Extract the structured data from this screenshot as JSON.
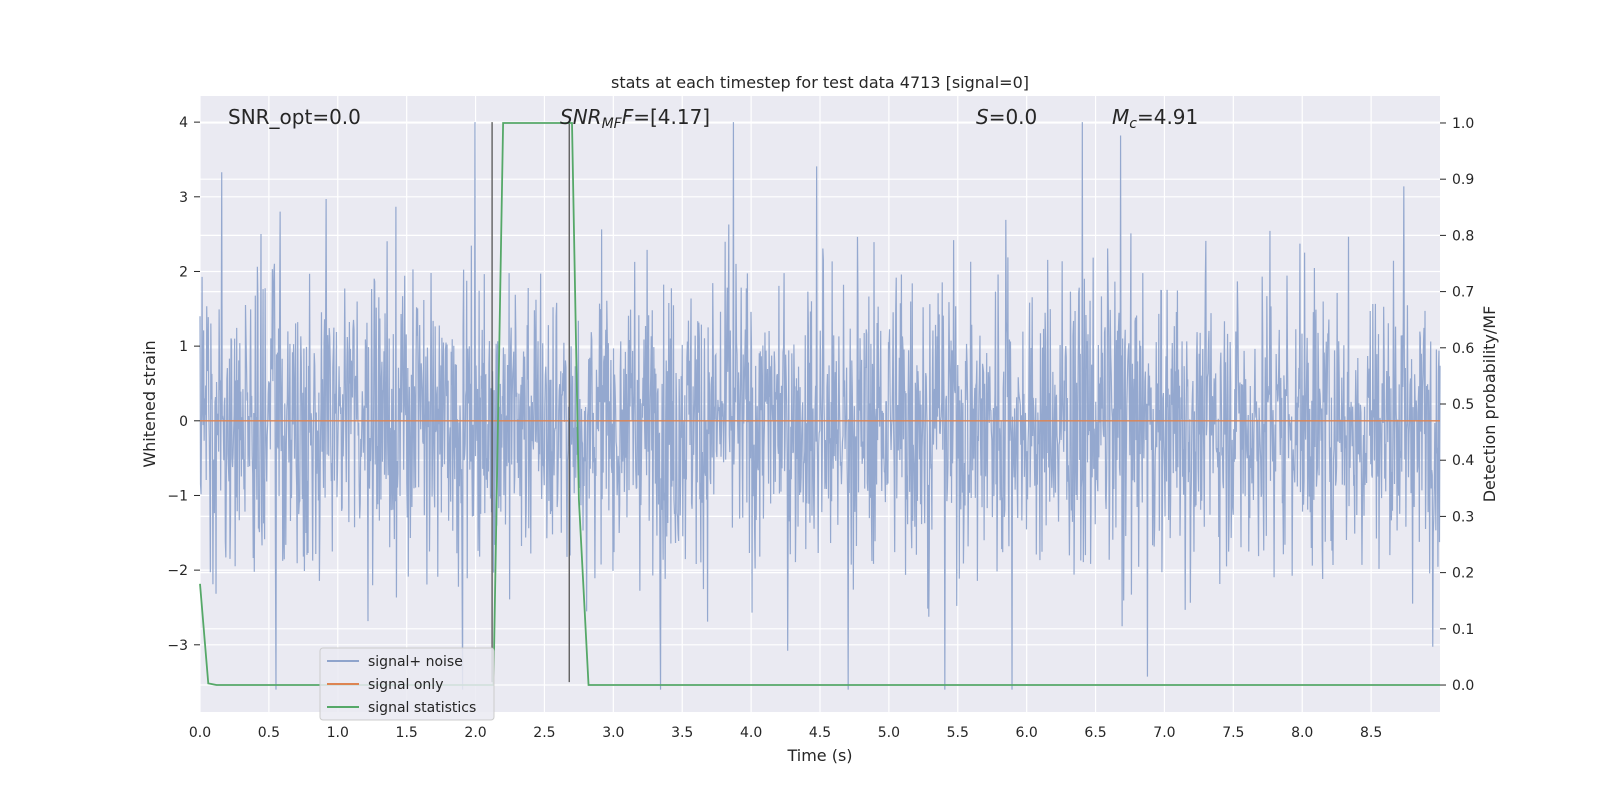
{
  "chart_data": {
    "type": "line",
    "title": "stats at each timestep for test data 4713 [signal=0]",
    "xlabel": "Time (s)",
    "ylabel": "Whitened strain",
    "y2label": "Detection probability/MF",
    "xlim": [
      0.0,
      9.0
    ],
    "ylim": [
      -3.9,
      4.35
    ],
    "y2lim": [
      -0.048,
      1.048
    ],
    "xticks": [
      0.0,
      0.5,
      1.0,
      1.5,
      2.0,
      2.5,
      3.0,
      3.5,
      4.0,
      4.5,
      5.0,
      5.5,
      6.0,
      6.5,
      7.0,
      7.5,
      8.0,
      8.5
    ],
    "xtick_labels": [
      "0.0",
      "0.5",
      "1.0",
      "1.5",
      "2.0",
      "2.5",
      "3.0",
      "3.5",
      "4.0",
      "4.5",
      "5.0",
      "5.5",
      "6.0",
      "6.5",
      "7.0",
      "7.5",
      "8.0",
      "8.5"
    ],
    "yticks": [
      -3,
      -2,
      -1,
      0,
      1,
      2,
      3,
      4
    ],
    "ytick_labels": [
      "−3",
      "−2",
      "−1",
      "0",
      "1",
      "2",
      "3",
      "4"
    ],
    "y2ticks": [
      0.0,
      0.1,
      0.2,
      0.3,
      0.4,
      0.5,
      0.6,
      0.7,
      0.8,
      0.9,
      1.0
    ],
    "y2tick_labels": [
      "0.0",
      "0.1",
      "0.2",
      "0.3",
      "0.4",
      "0.5",
      "0.6",
      "0.7",
      "0.8",
      "0.9",
      "1.0"
    ],
    "grid": true,
    "legend_position": "lower-left",
    "annotations": {
      "snr_opt": "SNR_opt=0.0",
      "snr_mf_main": "SNR",
      "snr_mf_sub": "MF",
      "snr_mf_value": "=[4.17]",
      "s_main": "S",
      "s_value": "=0.0",
      "mc_main": "M",
      "mc_sub": "c",
      "mc_value": "=4.91"
    },
    "series": [
      {
        "name": "signal+ noise",
        "color": "#8fa4cc",
        "axis": "left",
        "description_values": {
          "typical_range": [
            -1.3,
            1.6
          ],
          "peak_max": 4.0,
          "peak_min": -3.6
        }
      },
      {
        "name": "signal only",
        "color": "#dd8452",
        "axis": "left",
        "x": [
          0.0,
          9.0
        ],
        "y": [
          0.0,
          0.0
        ]
      },
      {
        "name": "signal statistics",
        "color": "#55a868",
        "axis": "right",
        "x": [
          0.0,
          0.06,
          0.12,
          2.0,
          2.13,
          2.2,
          2.25,
          2.7,
          2.75,
          2.82,
          9.0
        ],
        "y": [
          0.18,
          0.003,
          0.0,
          0.0,
          0.0,
          1.0,
          1.0,
          1.0,
          0.33,
          0.0,
          0.0
        ]
      }
    ],
    "vertical_markers": [
      {
        "x": 2.12,
        "y_top": 4.0,
        "y_bottom": -3.5,
        "color": "#555555"
      },
      {
        "x": 2.68,
        "y_top": 4.0,
        "y_bottom": -3.5,
        "color": "#555555"
      }
    ]
  }
}
